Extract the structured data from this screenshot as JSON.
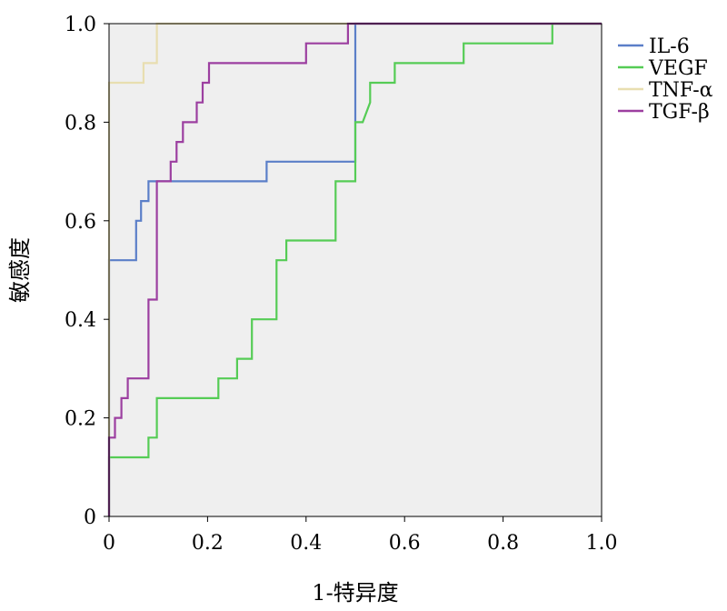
{
  "chart_data": {
    "type": "line",
    "title": "",
    "xlabel": "1-特异度",
    "ylabel": "敏感度",
    "xlim": [
      0,
      1
    ],
    "ylim": [
      0,
      1
    ],
    "grid": false,
    "legend_position": "right",
    "plot_background": "#efefef",
    "x_ticks": [
      {
        "value": 0,
        "label": "0"
      },
      {
        "value": 0.2,
        "label": "0.2"
      },
      {
        "value": 0.4,
        "label": "0.4"
      },
      {
        "value": 0.6,
        "label": "0.6"
      },
      {
        "value": 0.8,
        "label": "0.8"
      },
      {
        "value": 1.0,
        "label": "1.0"
      }
    ],
    "y_ticks": [
      {
        "value": 0,
        "label": "0"
      },
      {
        "value": 0.2,
        "label": "0.2"
      },
      {
        "value": 0.4,
        "label": "0.4"
      },
      {
        "value": 0.6,
        "label": "0.6"
      },
      {
        "value": 0.8,
        "label": "0.8"
      },
      {
        "value": 1.0,
        "label": "1.0"
      }
    ],
    "series": [
      {
        "name": "IL-6",
        "color": "#5b7fc8",
        "points": [
          [
            0,
            0
          ],
          [
            0,
            0.52
          ],
          [
            0.055,
            0.52
          ],
          [
            0.055,
            0.6
          ],
          [
            0.065,
            0.6
          ],
          [
            0.065,
            0.64
          ],
          [
            0.08,
            0.64
          ],
          [
            0.08,
            0.68
          ],
          [
            0.32,
            0.68
          ],
          [
            0.32,
            0.72
          ],
          [
            0.5,
            0.72
          ],
          [
            0.5,
            1.0
          ],
          [
            1.0,
            1.0
          ]
        ]
      },
      {
        "name": "VEGF",
        "color": "#55cc55",
        "points": [
          [
            0,
            0
          ],
          [
            0,
            0.12
          ],
          [
            0.08,
            0.12
          ],
          [
            0.08,
            0.16
          ],
          [
            0.097,
            0.16
          ],
          [
            0.097,
            0.24
          ],
          [
            0.222,
            0.24
          ],
          [
            0.222,
            0.28
          ],
          [
            0.26,
            0.28
          ],
          [
            0.26,
            0.32
          ],
          [
            0.29,
            0.32
          ],
          [
            0.29,
            0.4
          ],
          [
            0.34,
            0.4
          ],
          [
            0.34,
            0.52
          ],
          [
            0.36,
            0.52
          ],
          [
            0.36,
            0.56
          ],
          [
            0.46,
            0.56
          ],
          [
            0.46,
            0.68
          ],
          [
            0.5,
            0.68
          ],
          [
            0.5,
            0.8
          ],
          [
            0.515,
            0.8
          ],
          [
            0.53,
            0.84
          ],
          [
            0.53,
            0.88
          ],
          [
            0.58,
            0.88
          ],
          [
            0.58,
            0.92
          ],
          [
            0.72,
            0.92
          ],
          [
            0.72,
            0.96
          ],
          [
            0.9,
            0.96
          ],
          [
            0.9,
            1.0
          ],
          [
            1.0,
            1.0
          ]
        ]
      },
      {
        "name": "TNF-α",
        "color": "#e8deb0",
        "points": [
          [
            0,
            0
          ],
          [
            0,
            0.88
          ],
          [
            0.07,
            0.88
          ],
          [
            0.07,
            0.92
          ],
          [
            0.097,
            0.92
          ],
          [
            0.097,
            1.0
          ],
          [
            1.0,
            1.0
          ]
        ]
      },
      {
        "name": "TGF-β",
        "color": "#9c3fa0",
        "points": [
          [
            0,
            0
          ],
          [
            0,
            0.16
          ],
          [
            0.012,
            0.16
          ],
          [
            0.012,
            0.2
          ],
          [
            0.025,
            0.2
          ],
          [
            0.025,
            0.24
          ],
          [
            0.038,
            0.24
          ],
          [
            0.038,
            0.28
          ],
          [
            0.08,
            0.28
          ],
          [
            0.08,
            0.44
          ],
          [
            0.097,
            0.44
          ],
          [
            0.097,
            0.68
          ],
          [
            0.125,
            0.68
          ],
          [
            0.125,
            0.72
          ],
          [
            0.137,
            0.72
          ],
          [
            0.137,
            0.76
          ],
          [
            0.15,
            0.76
          ],
          [
            0.15,
            0.8
          ],
          [
            0.178,
            0.8
          ],
          [
            0.178,
            0.84
          ],
          [
            0.19,
            0.84
          ],
          [
            0.19,
            0.88
          ],
          [
            0.203,
            0.88
          ],
          [
            0.203,
            0.92
          ],
          [
            0.4,
            0.92
          ],
          [
            0.4,
            0.96
          ],
          [
            0.485,
            0.96
          ],
          [
            0.485,
            1.0
          ],
          [
            1.0,
            1.0
          ]
        ]
      }
    ]
  }
}
